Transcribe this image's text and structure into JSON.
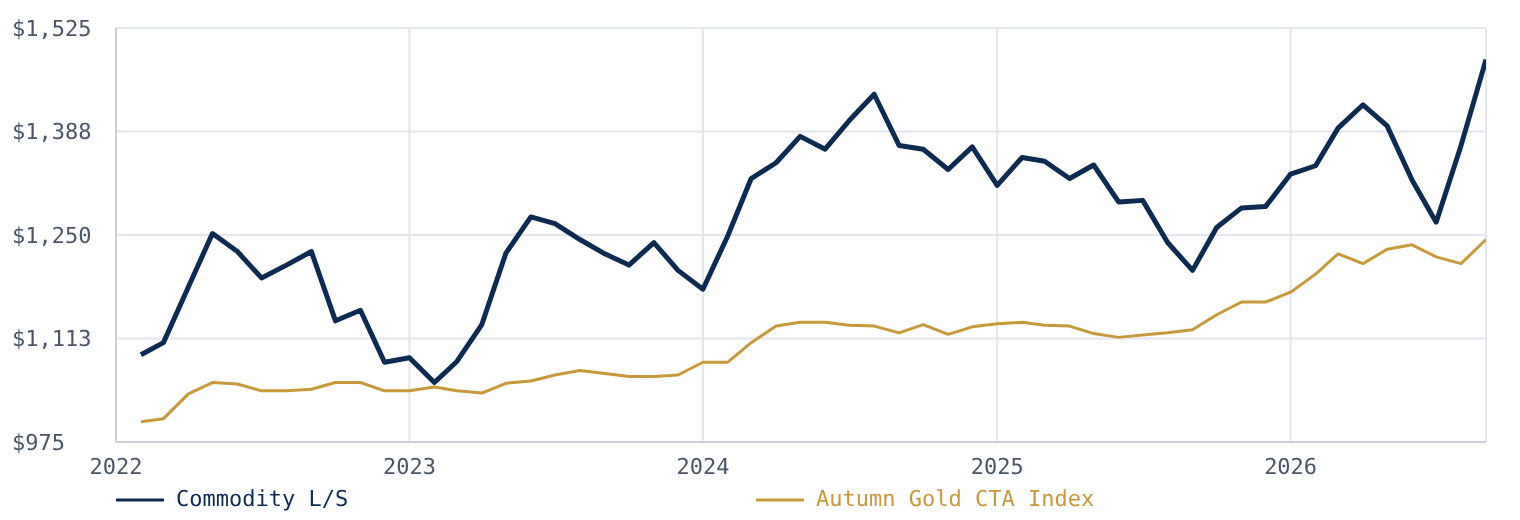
{
  "chart_data": {
    "type": "line",
    "x": [
      "2022-02",
      "2022-03",
      "2022-04",
      "2022-05",
      "2022-06",
      "2022-07",
      "2022-08",
      "2022-09",
      "2022-10",
      "2022-11",
      "2022-12",
      "2023-01",
      "2023-02",
      "2023-03",
      "2023-04",
      "2023-05",
      "2023-06",
      "2023-07",
      "2023-08",
      "2023-09",
      "2023-10",
      "2023-11",
      "2023-12",
      "2024-01",
      "2024-02",
      "2024-03",
      "2024-04",
      "2024-05",
      "2024-06",
      "2024-07",
      "2024-08",
      "2024-09",
      "2024-10",
      "2024-11",
      "2024-12",
      "2025-01",
      "2025-02",
      "2025-03",
      "2025-04",
      "2025-05",
      "2025-06",
      "2025-07",
      "2025-08",
      "2025-09",
      "2025-10",
      "2025-11",
      "2025-12",
      "2026-01",
      "2026-02",
      "2026-03",
      "2026-04",
      "2026-05",
      "2026-06",
      "2026-07",
      "2026-08",
      "2026-09"
    ],
    "series": [
      {
        "name": "Commodity L/S",
        "color": "#0d2b52",
        "values": [
          1091,
          1107,
          1181,
          1252,
          1228,
          1193,
          1210,
          1228,
          1136,
          1150,
          1081,
          1087,
          1054,
          1082,
          1131,
          1226,
          1274,
          1265,
          1244,
          1225,
          1210,
          1240,
          1203,
          1178,
          1249,
          1325,
          1346,
          1381,
          1364,
          1402,
          1437,
          1369,
          1364,
          1337,
          1367,
          1316,
          1353,
          1348,
          1325,
          1343,
          1294,
          1296,
          1240,
          1203,
          1260,
          1286,
          1288,
          1331,
          1342,
          1392,
          1423,
          1395,
          1323,
          1267,
          1369,
          1483
        ]
      },
      {
        "name": "Autumn Gold CTA Index",
        "color": "#c8993a",
        "values": [
          1002,
          1006,
          1039,
          1054,
          1052,
          1043,
          1043,
          1045,
          1054,
          1054,
          1043,
          1043,
          1048,
          1043,
          1040,
          1053,
          1056,
          1064,
          1070,
          1066,
          1062,
          1062,
          1064,
          1081,
          1081,
          1107,
          1129,
          1134,
          1134,
          1130,
          1129,
          1120,
          1131,
          1118,
          1128,
          1132,
          1134,
          1130,
          1129,
          1119,
          1114,
          1117,
          1120,
          1124,
          1144,
          1161,
          1161,
          1174,
          1198,
          1225,
          1212,
          1231,
          1237,
          1221,
          1212,
          1244
        ]
      }
    ],
    "xlim": [
      "2022-01",
      "2026-09"
    ],
    "xticks": [
      {
        "value": "2022-01",
        "label": "2022"
      },
      {
        "value": "2023-01",
        "label": "2023"
      },
      {
        "value": "2024-01",
        "label": "2024"
      },
      {
        "value": "2025-01",
        "label": "2025"
      },
      {
        "value": "2026-01",
        "label": "2026"
      }
    ],
    "ylim": [
      975,
      1525
    ],
    "yticks": [
      {
        "value": 975,
        "label": "$975"
      },
      {
        "value": 1112.5,
        "label": "$1,113"
      },
      {
        "value": 1250,
        "label": "$1,250"
      },
      {
        "value": 1387.5,
        "label": "$1,388"
      },
      {
        "value": 1525,
        "label": "$1,525"
      }
    ],
    "grid": true,
    "legend": "bottom left",
    "marker": "none",
    "line_style": "solid"
  }
}
